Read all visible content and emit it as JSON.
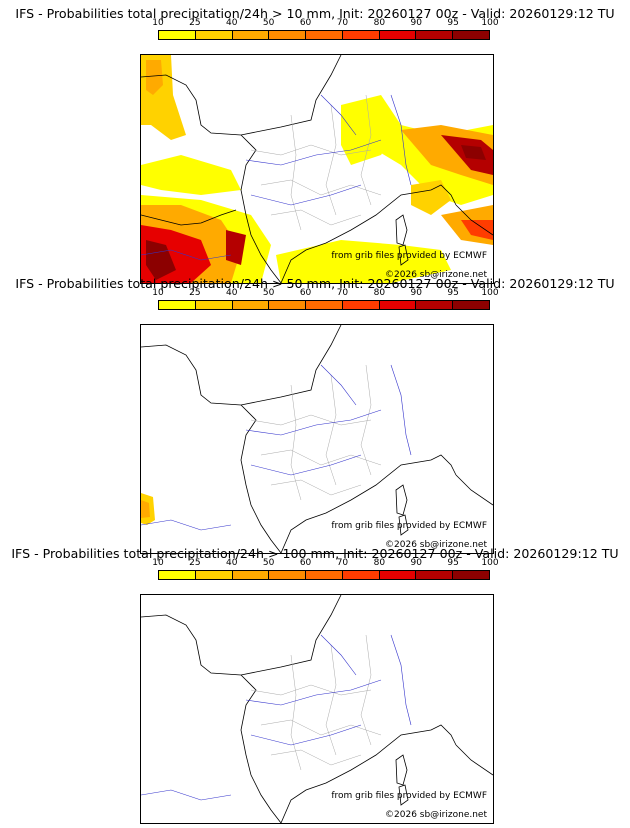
{
  "panels": [
    {
      "title": "IFS - Probabilities total precipitation/24h > 10 mm, Init: 20260127 00z - Valid: 20260129:12 TU",
      "credit_source": "from grib files provided by ECMWF",
      "credit_copyright": "©2026 sb@irizone.net",
      "shading": "heavy"
    },
    {
      "title": "IFS - Probabilities total precipitation/24h > 50 mm, Init: 20260127 00z - Valid: 20260129:12 TU",
      "credit_source": "from grib files provided by ECMWF",
      "credit_copyright": "©2026 sb@irizone.net",
      "shading": "light"
    },
    {
      "title": "IFS - Probabilities total precipitation/24h > 100 mm, Init: 20260127 00z - Valid: 20260129:12 TU",
      "credit_source": "from grib files provided by ECMWF",
      "credit_copyright": "©2026 sb@irizone.net",
      "shading": "none"
    }
  ],
  "colorbar": {
    "ticks": [
      "10",
      "25",
      "40",
      "50",
      "60",
      "70",
      "80",
      "90",
      "95",
      "100"
    ],
    "colors": [
      "#ffff00",
      "#ffd200",
      "#ffaa00",
      "#ff8c00",
      "#ff6a00",
      "#ff3c00",
      "#e60000",
      "#b40000",
      "#8c0000"
    ]
  }
}
